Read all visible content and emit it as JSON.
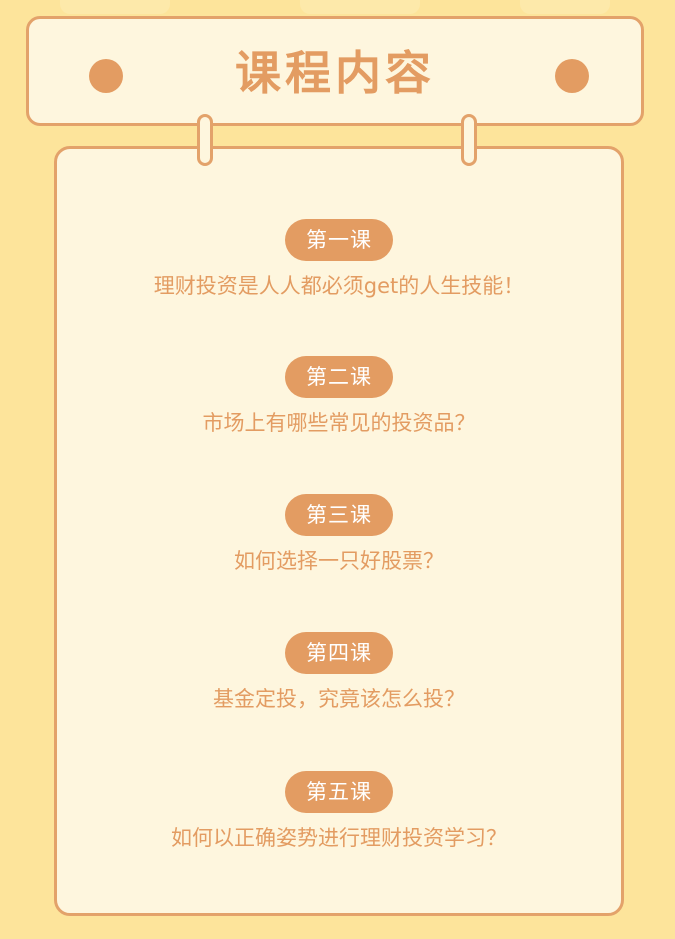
{
  "header": {
    "title": "课程内容"
  },
  "lessons": [
    {
      "label": "第一课",
      "description": "理财投资是人人都必须get的人生技能！"
    },
    {
      "label": "第二课",
      "description": "市场上有哪些常见的投资品？"
    },
    {
      "label": "第三课",
      "description": "如何选择一只好股票？"
    },
    {
      "label": "第四课",
      "description": "基金定投，究竟该怎么投？"
    },
    {
      "label": "第五课",
      "description": "如何以正确姿势进行理财投资学习？"
    }
  ],
  "colors": {
    "background": "#fde49b",
    "card": "#fef6de",
    "accent": "#e39c62",
    "border": "#e3a26a"
  }
}
